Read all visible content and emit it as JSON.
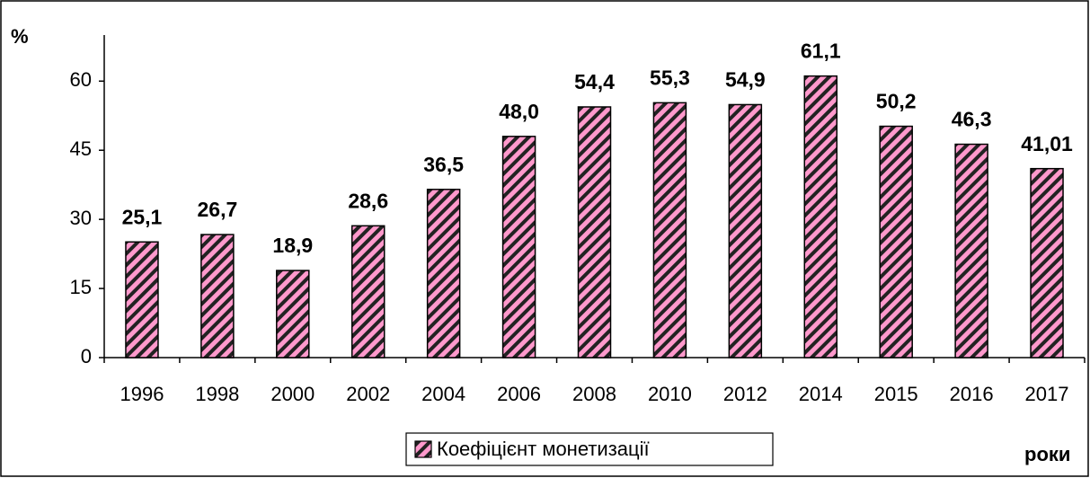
{
  "chart_data": {
    "type": "bar",
    "categories": [
      "1996",
      "1998",
      "2000",
      "2002",
      "2004",
      "2006",
      "2008",
      "2010",
      "2012",
      "2014",
      "2015",
      "2016",
      "2017"
    ],
    "values": [
      25.1,
      26.7,
      18.9,
      28.6,
      36.5,
      48.0,
      54.4,
      55.3,
      54.9,
      61.1,
      50.2,
      46.3,
      41.01
    ],
    "value_labels": [
      "25,1",
      "26,7",
      "18,9",
      "28,6",
      "36,5",
      "48,0",
      "54,4",
      "55,3",
      "54,9",
      "61,1",
      "50,2",
      "46,3",
      "41,01"
    ],
    "series_name": "Коефіцієнт монетизації",
    "color": "#ff99cc",
    "y_label": "%",
    "x_label": "роки",
    "ylim": [
      0,
      70
    ],
    "yticks": [
      0,
      15,
      30,
      45,
      60
    ],
    "grid": false
  }
}
